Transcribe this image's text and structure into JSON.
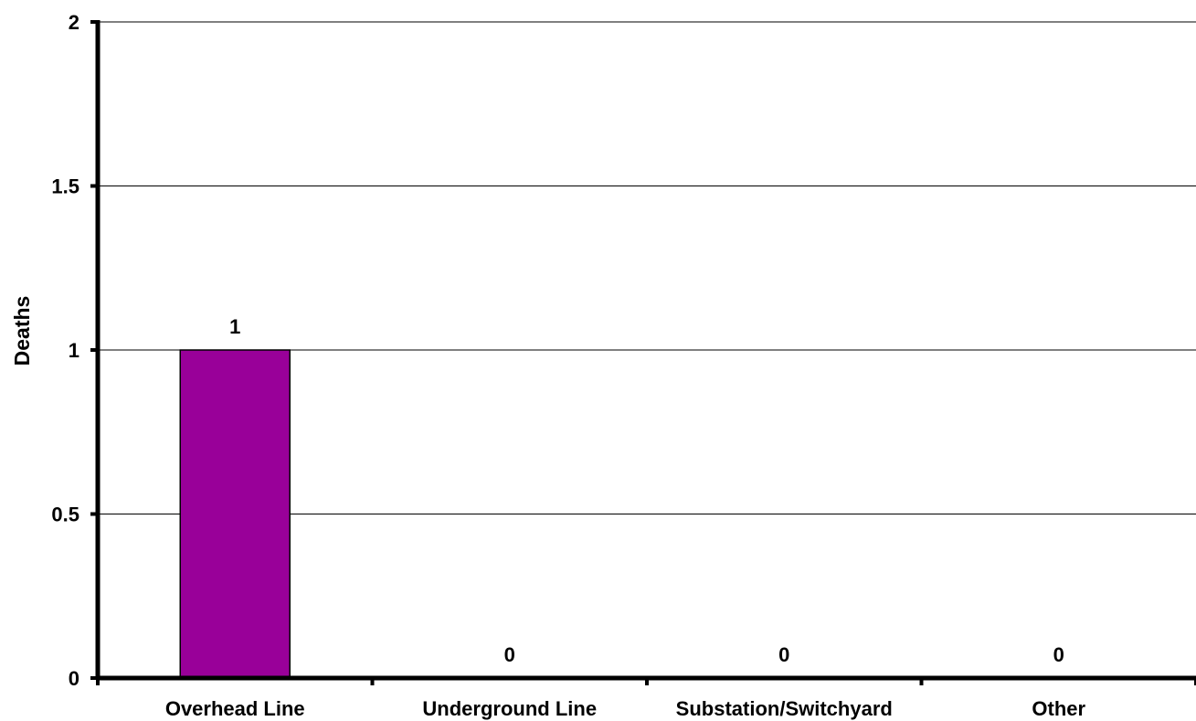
{
  "chart_data": {
    "type": "bar",
    "title": "",
    "xlabel": "",
    "ylabel": "Deaths",
    "categories": [
      "Overhead Line",
      "Underground Line",
      "Substation/Switchyard",
      "Other"
    ],
    "values": [
      1,
      0,
      0,
      0
    ],
    "data_labels": [
      "1",
      "0",
      "0",
      "0"
    ],
    "ylim": [
      0,
      2
    ],
    "yticks": [
      0,
      0.5,
      1,
      1.5,
      2
    ],
    "ytick_labels": [
      "0",
      "0.5",
      "1",
      "1.5",
      "2"
    ],
    "grid": true,
    "legend": "none",
    "bar_color": "#990099"
  }
}
